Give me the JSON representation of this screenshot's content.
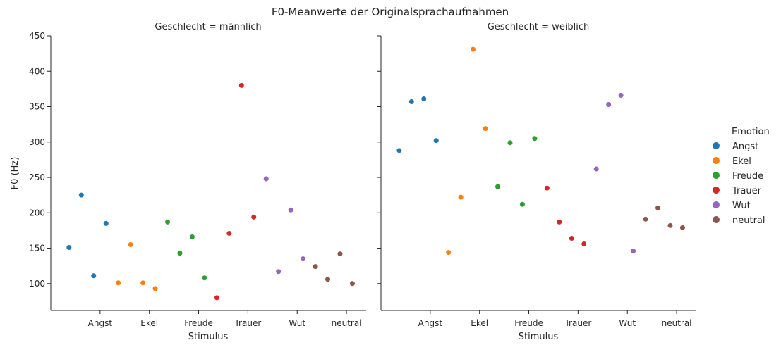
{
  "chart_data": {
    "type": "scatter",
    "title": "F0-Meanwerte der Originalsprachaufnahmen",
    "ylabel": "F0 (Hz)",
    "xlabel": "Stimulus",
    "ylim": [
      62,
      450
    ],
    "yticks": [
      100,
      150,
      200,
      250,
      300,
      350,
      400,
      450
    ],
    "categories": [
      "Angst",
      "Ekel",
      "Freude",
      "Trauer",
      "Wut",
      "neutral"
    ],
    "legend": {
      "title": "Emotion",
      "placement": "right",
      "entries": [
        {
          "name": "Angst",
          "color": "#1f77b4"
        },
        {
          "name": "Ekel",
          "color": "#ff7f0e"
        },
        {
          "name": "Freude",
          "color": "#2ca02c"
        },
        {
          "name": "Trauer",
          "color": "#d62728"
        },
        {
          "name": "Wut",
          "color": "#9467bd"
        },
        {
          "name": "neutral",
          "color": "#8c564b"
        }
      ]
    },
    "panels": [
      {
        "title": "Geschlecht = männlich",
        "series": [
          {
            "emotion": "Angst",
            "x": [
              -0.63,
              -0.38,
              -0.13,
              0.12
            ],
            "y": [
              151,
              225,
              111,
              185
            ]
          },
          {
            "emotion": "Ekel",
            "x": [
              0.37,
              0.62,
              0.87,
              1.12
            ],
            "y": [
              101,
              155,
              101,
              93
            ]
          },
          {
            "emotion": "Freude",
            "x": [
              1.37,
              1.62,
              1.87,
              2.12
            ],
            "y": [
              187,
              143,
              166,
              108
            ]
          },
          {
            "emotion": "Trauer",
            "x": [
              2.37,
              2.62,
              2.87,
              3.12
            ],
            "y": [
              80,
              171,
              380,
              194
            ]
          },
          {
            "emotion": "Wut",
            "x": [
              3.37,
              3.62,
              3.87,
              4.12
            ],
            "y": [
              248,
              117,
              204,
              135
            ]
          },
          {
            "emotion": "neutral",
            "x": [
              4.37,
              4.62,
              4.87,
              5.12
            ],
            "y": [
              124,
              106,
              142,
              100
            ]
          }
        ]
      },
      {
        "title": "Geschlecht = weiblich",
        "series": [
          {
            "emotion": "Angst",
            "x": [
              -0.63,
              -0.38,
              -0.13,
              0.12
            ],
            "y": [
              288,
              357,
              361,
              302
            ]
          },
          {
            "emotion": "Ekel",
            "x": [
              0.37,
              0.62,
              0.87,
              1.12
            ],
            "y": [
              144,
              222,
              431,
              319
            ]
          },
          {
            "emotion": "Freude",
            "x": [
              1.37,
              1.62,
              1.87,
              2.12
            ],
            "y": [
              237,
              299,
              212,
              305
            ]
          },
          {
            "emotion": "Trauer",
            "x": [
              2.37,
              2.62,
              2.87,
              3.12
            ],
            "y": [
              235,
              187,
              164,
              156
            ]
          },
          {
            "emotion": "Wut",
            "x": [
              3.37,
              3.62,
              3.87,
              4.12
            ],
            "y": [
              262,
              353,
              366,
              146
            ]
          },
          {
            "emotion": "neutral",
            "x": [
              4.37,
              4.62,
              4.87,
              5.12
            ],
            "y": [
              191,
              207,
              182,
              179
            ]
          }
        ]
      }
    ]
  }
}
